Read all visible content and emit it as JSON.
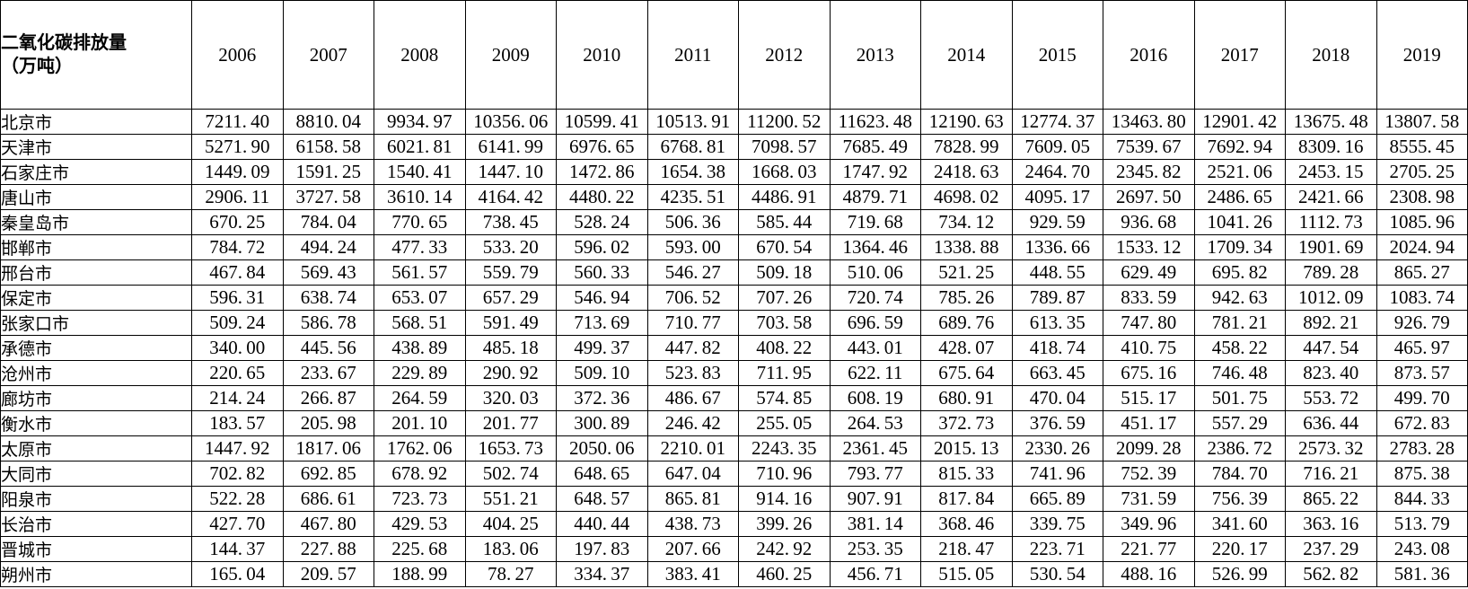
{
  "table": {
    "header": {
      "title_line1": "二氧化碳排放量",
      "title_line2": "（万吨）"
    },
    "years": [
      "2006",
      "2007",
      "2008",
      "2009",
      "2010",
      "2011",
      "2012",
      "2013",
      "2014",
      "2015",
      "2016",
      "2017",
      "2018",
      "2019"
    ],
    "rows": [
      {
        "city": "北京市",
        "values": [
          "7211.40",
          "8810.04",
          "9934.97",
          "10356.06",
          "10599.41",
          "10513.91",
          "11200.52",
          "11623.48",
          "12190.63",
          "12774.37",
          "13463.80",
          "12901.42",
          "13675.48",
          "13807.58"
        ]
      },
      {
        "city": "天津市",
        "values": [
          "5271.90",
          "6158.58",
          "6021.81",
          "6141.99",
          "6976.65",
          "6768.81",
          "7098.57",
          "7685.49",
          "7828.99",
          "7609.05",
          "7539.67",
          "7692.94",
          "8309.16",
          "8555.45"
        ]
      },
      {
        "city": "石家庄市",
        "values": [
          "1449.09",
          "1591.25",
          "1540.41",
          "1447.10",
          "1472.86",
          "1654.38",
          "1668.03",
          "1747.92",
          "2418.63",
          "2464.70",
          "2345.82",
          "2521.06",
          "2453.15",
          "2705.25"
        ]
      },
      {
        "city": "唐山市",
        "values": [
          "2906.11",
          "3727.58",
          "3610.14",
          "4164.42",
          "4480.22",
          "4235.51",
          "4486.91",
          "4879.71",
          "4698.02",
          "4095.17",
          "2697.50",
          "2486.65",
          "2421.66",
          "2308.98"
        ]
      },
      {
        "city": "秦皇岛市",
        "values": [
          "670.25",
          "784.04",
          "770.65",
          "738.45",
          "528.24",
          "506.36",
          "585.44",
          "719.68",
          "734.12",
          "929.59",
          "936.68",
          "1041.26",
          "1112.73",
          "1085.96"
        ]
      },
      {
        "city": "邯郸市",
        "values": [
          "784.72",
          "494.24",
          "477.33",
          "533.20",
          "596.02",
          "593.00",
          "670.54",
          "1364.46",
          "1338.88",
          "1336.66",
          "1533.12",
          "1709.34",
          "1901.69",
          "2024.94"
        ]
      },
      {
        "city": "邢台市",
        "values": [
          "467.84",
          "569.43",
          "561.57",
          "559.79",
          "560.33",
          "546.27",
          "509.18",
          "510.06",
          "521.25",
          "448.55",
          "629.49",
          "695.82",
          "789.28",
          "865.27"
        ]
      },
      {
        "city": "保定市",
        "values": [
          "596.31",
          "638.74",
          "653.07",
          "657.29",
          "546.94",
          "706.52",
          "707.26",
          "720.74",
          "785.26",
          "789.87",
          "833.59",
          "942.63",
          "1012.09",
          "1083.74"
        ]
      },
      {
        "city": "张家口市",
        "values": [
          "509.24",
          "586.78",
          "568.51",
          "591.49",
          "713.69",
          "710.77",
          "703.58",
          "696.59",
          "689.76",
          "613.35",
          "747.80",
          "781.21",
          "892.21",
          "926.79"
        ]
      },
      {
        "city": "承德市",
        "values": [
          "340.00",
          "445.56",
          "438.89",
          "485.18",
          "499.37",
          "447.82",
          "408.22",
          "443.01",
          "428.07",
          "418.74",
          "410.75",
          "458.22",
          "447.54",
          "465.97"
        ]
      },
      {
        "city": "沧州市",
        "values": [
          "220.65",
          "233.67",
          "229.89",
          "290.92",
          "509.10",
          "523.83",
          "711.95",
          "622.11",
          "675.64",
          "663.45",
          "675.16",
          "746.48",
          "823.40",
          "873.57"
        ]
      },
      {
        "city": "廊坊市",
        "values": [
          "214.24",
          "266.87",
          "264.59",
          "320.03",
          "372.36",
          "486.67",
          "574.85",
          "608.19",
          "680.91",
          "470.04",
          "515.17",
          "501.75",
          "553.72",
          "499.70"
        ]
      },
      {
        "city": "衡水市",
        "values": [
          "183.57",
          "205.98",
          "201.10",
          "201.77",
          "300.89",
          "246.42",
          "255.05",
          "264.53",
          "372.73",
          "376.59",
          "451.17",
          "557.29",
          "636.44",
          "672.83"
        ]
      },
      {
        "city": "太原市",
        "values": [
          "1447.92",
          "1817.06",
          "1762.06",
          "1653.73",
          "2050.06",
          "2210.01",
          "2243.35",
          "2361.45",
          "2015.13",
          "2330.26",
          "2099.28",
          "2386.72",
          "2573.32",
          "2783.28"
        ]
      },
      {
        "city": "大同市",
        "values": [
          "702.82",
          "692.85",
          "678.92",
          "502.74",
          "648.65",
          "647.04",
          "710.96",
          "793.77",
          "815.33",
          "741.96",
          "752.39",
          "784.70",
          "716.21",
          "875.38"
        ]
      },
      {
        "city": "阳泉市",
        "values": [
          "522.28",
          "686.61",
          "723.73",
          "551.21",
          "648.57",
          "865.81",
          "914.16",
          "907.91",
          "817.84",
          "665.89",
          "731.59",
          "756.39",
          "865.22",
          "844.33"
        ]
      },
      {
        "city": "长治市",
        "values": [
          "427.70",
          "467.80",
          "429.53",
          "404.25",
          "440.44",
          "438.73",
          "399.26",
          "381.14",
          "368.46",
          "339.75",
          "349.96",
          "341.60",
          "363.16",
          "513.79"
        ]
      },
      {
        "city": "晋城市",
        "values": [
          "144.37",
          "227.88",
          "225.68",
          "183.06",
          "197.83",
          "207.66",
          "242.92",
          "253.35",
          "218.47",
          "223.71",
          "221.77",
          "220.17",
          "237.29",
          "243.08"
        ]
      },
      {
        "city": "朔州市",
        "values": [
          "165.04",
          "209.57",
          "188.99",
          "78.27",
          "334.37",
          "383.41",
          "460.25",
          "456.71",
          "515.05",
          "530.54",
          "488.16",
          "526.99",
          "562.82",
          "581.36"
        ]
      }
    ]
  },
  "colors": {
    "border": "#000000",
    "background": "#ffffff",
    "text": "#000000"
  }
}
